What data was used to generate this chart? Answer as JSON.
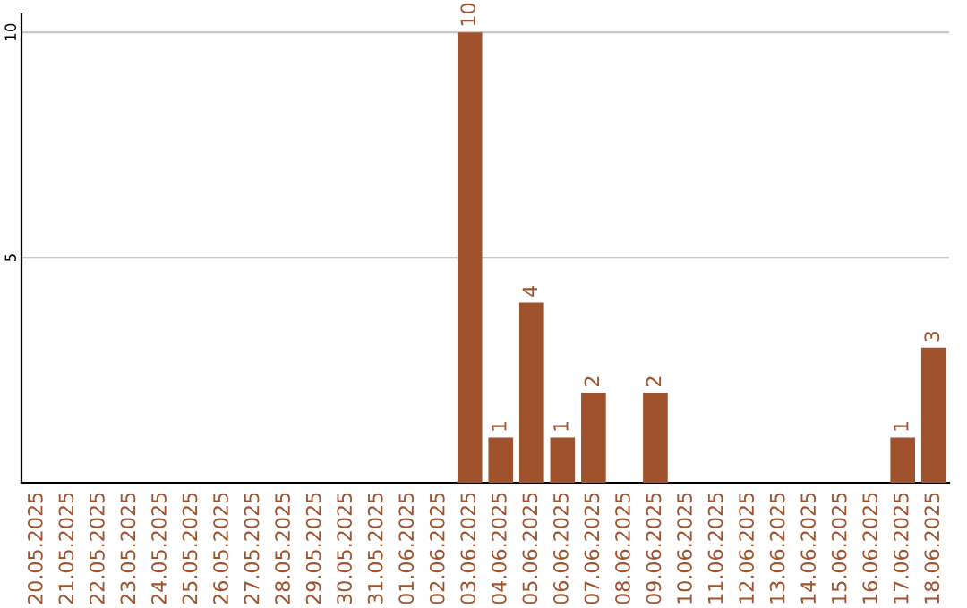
{
  "chart_data": {
    "type": "bar",
    "categories": [
      "20.05.2025",
      "21.05.2025",
      "22.05.2025",
      "23.05.2025",
      "24.05.2025",
      "25.05.2025",
      "26.05.2025",
      "27.05.2025",
      "28.05.2025",
      "29.05.2025",
      "30.05.2025",
      "31.05.2025",
      "01.06.2025",
      "02.06.2025",
      "03.06.2025",
      "04.06.2025",
      "05.06.2025",
      "06.06.2025",
      "07.06.2025",
      "08.06.2025",
      "09.06.2025",
      "10.06.2025",
      "11.06.2025",
      "12.06.2025",
      "13.06.2025",
      "14.06.2025",
      "15.06.2025",
      "16.06.2025",
      "17.06.2025",
      "18.06.2025"
    ],
    "values": [
      0,
      0,
      0,
      0,
      0,
      0,
      0,
      0,
      0,
      0,
      0,
      0,
      0,
      0,
      10,
      1,
      4,
      1,
      2,
      0,
      2,
      0,
      0,
      0,
      0,
      0,
      0,
      0,
      1,
      3
    ],
    "value_labels": [
      null,
      null,
      null,
      null,
      null,
      null,
      null,
      null,
      null,
      null,
      null,
      null,
      null,
      null,
      "10",
      "1",
      "4",
      "1",
      "2",
      null,
      "2",
      null,
      null,
      null,
      null,
      null,
      null,
      null,
      "1",
      "3"
    ],
    "color": "#a0522d",
    "ylim": [
      0,
      10.4
    ],
    "yticks": [
      5,
      10
    ],
    "grid": "y"
  }
}
